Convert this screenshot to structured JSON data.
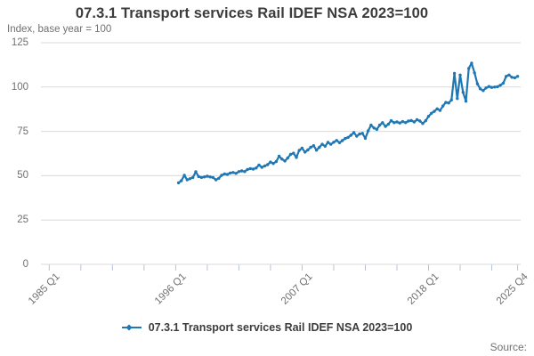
{
  "header": {
    "title": "07.3.1 Transport services Rail IDEF NSA 2023=100",
    "subtitle": "Index, base year = 100"
  },
  "legend": {
    "label": "07.3.1 Transport services Rail IDEF NSA 2023=100"
  },
  "source": {
    "label": "Source:"
  },
  "colors": {
    "line": "#1f77b4",
    "grid": "#d9d9d9",
    "tick": "#b7c3d9",
    "title": "#3c3c3b",
    "muted": "#707071"
  },
  "chart_data": {
    "type": "line",
    "title": "07.3.1 Transport services Rail IDEF NSA 2023=100",
    "xlabel": "",
    "ylabel": "Index, base year = 100",
    "ylim": [
      0,
      125
    ],
    "y_ticks": [
      0,
      25,
      50,
      75,
      100,
      125
    ],
    "grid": true,
    "legend_position": "bottom",
    "x_axis_start_period": "1985 Q1",
    "x_axis_end_period": "2025 Q4",
    "x_domain_quarters": [
      0,
      163
    ],
    "x_tick_quarters": [
      0,
      11,
      22,
      33,
      44,
      55,
      66,
      77,
      88,
      99,
      110,
      121,
      132,
      143,
      154,
      163
    ],
    "x_tick_labels": [
      "1985 Q1",
      "",
      "",
      "",
      "1996 Q1",
      "",
      "",
      "",
      "2007 Q1",
      "",
      "",
      "",
      "2018 Q1",
      "",
      "",
      "2025 Q4"
    ],
    "series": [
      {
        "name": "07.3.1 Transport services Rail IDEF NSA 2023=100",
        "frequency": "quarterly",
        "start_period": "1996 Q2",
        "end_period": "2025 Q4",
        "start_quarter_offset": 45,
        "values": [
          46.0,
          47.2,
          50.2,
          47.7,
          48.3,
          49.0,
          52.2,
          49.5,
          49.0,
          49.3,
          49.7,
          49.3,
          49.0,
          47.7,
          48.5,
          50.2,
          51.0,
          50.7,
          51.5,
          51.8,
          51.3,
          52.3,
          52.7,
          52.3,
          53.5,
          54.0,
          53.7,
          54.3,
          56.0,
          54.7,
          55.5,
          56.2,
          57.7,
          56.9,
          58.0,
          61.0,
          59.4,
          58.3,
          60.0,
          62.0,
          62.7,
          60.3,
          64.3,
          65.5,
          63.3,
          64.5,
          66.0,
          66.9,
          64.4,
          66.0,
          67.7,
          66.6,
          68.8,
          67.7,
          68.9,
          69.9,
          68.6,
          69.8,
          71.0,
          71.6,
          72.8,
          74.3,
          72.3,
          73.5,
          73.9,
          71.1,
          75.3,
          78.5,
          76.9,
          76.1,
          78.5,
          79.9,
          77.8,
          79.0,
          81.0,
          79.9,
          80.3,
          79.7,
          80.5,
          79.9,
          80.8,
          81.1,
          80.3,
          81.6,
          80.8,
          79.4,
          81.0,
          83.5,
          85.2,
          86.3,
          87.7,
          86.8,
          89.3,
          91.3,
          91.0,
          92.7,
          107.7,
          93.5,
          106.8,
          97.0,
          92.0,
          110.5,
          113.5,
          108.0,
          101.8,
          99.0,
          98.0,
          99.5,
          100.3,
          99.8,
          100.0,
          100.2,
          101.0,
          102.2,
          106.0,
          106.8,
          105.5,
          105.2,
          106.0
        ]
      }
    ]
  }
}
